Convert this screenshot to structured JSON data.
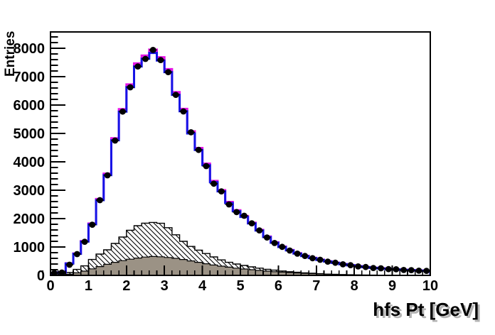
{
  "page": {
    "background": "#ffffff"
  },
  "chart_data": {
    "type": "bar",
    "subtype": "root-histogram-overlay",
    "title": "",
    "xlabel": "hfs Pt [GeV]",
    "ylabel": "Entries",
    "x_range": [
      0,
      10
    ],
    "y_range": [
      0,
      8575
    ],
    "x_major_ticks": [
      0,
      1,
      2,
      3,
      4,
      5,
      6,
      7,
      8,
      9,
      10
    ],
    "y_major_ticks": [
      0,
      1000,
      2000,
      3000,
      4000,
      5000,
      6000,
      7000,
      8000
    ],
    "x_minor_step": 0.2,
    "y_minor_step": 200,
    "grid": false,
    "legend_position": "none",
    "bin_width": 0.2,
    "bin_start": 0,
    "n_bins": 50,
    "series": [
      {
        "name": "background-hatched",
        "style": "step-filled",
        "fill": "hatch",
        "line_color": "#000000",
        "values": [
          20,
          45,
          100,
          210,
          335,
          560,
          750,
          900,
          1125,
          1350,
          1590,
          1750,
          1840,
          1865,
          1835,
          1680,
          1430,
          1200,
          1020,
          890,
          770,
          650,
          545,
          460,
          400,
          350,
          300,
          255,
          215,
          185,
          155,
          130,
          110,
          90,
          75,
          60,
          45,
          35,
          25,
          18,
          12,
          8,
          5,
          4,
          3,
          2,
          2,
          1,
          1,
          1
        ]
      },
      {
        "name": "background-gray",
        "style": "step-filled",
        "fill": "#9b9285",
        "line_color": "#000000",
        "values": [
          5,
          15,
          40,
          90,
          150,
          230,
          310,
          390,
          460,
          520,
          570,
          610,
          645,
          665,
          655,
          630,
          600,
          560,
          510,
          460,
          410,
          365,
          325,
          290,
          255,
          225,
          200,
          175,
          150,
          130,
          115,
          100,
          85,
          72,
          62,
          52,
          44,
          37,
          30,
          25,
          20,
          16,
          13,
          10,
          8,
          6,
          5,
          4,
          3,
          2
        ]
      },
      {
        "name": "mc-black",
        "style": "step-line",
        "line_color": "#000000",
        "line_width": 2,
        "values": [
          85,
          106,
          422,
          764,
          1196,
          1809,
          2663,
          3548,
          4784,
          5799,
          6663,
          7397,
          7668,
          7874,
          7608,
          7196,
          6392,
          5809,
          5025,
          4442,
          3899,
          3296,
          2975,
          2563,
          2271,
          2070,
          1839,
          1588,
          1357,
          1156,
          1005,
          884,
          774,
          683,
          613,
          548,
          492,
          442,
          397,
          357,
          322,
          291,
          266,
          246,
          226,
          211,
          196,
          181,
          171,
          161
        ]
      },
      {
        "name": "mc-magenta",
        "style": "step-line",
        "line_color": "#e614e6",
        "line_width": 3,
        "values": [
          86,
          107,
          426,
          771,
          1208,
          1827,
          2690,
          3583,
          4831,
          5857,
          6729,
          7470,
          7744,
          7953,
          7684,
          7267,
          6455,
          5867,
          5075,
          4486,
          3938,
          3329,
          3004,
          2588,
          2294,
          2091,
          1857,
          1604,
          1370,
          1167,
          1015,
          893,
          781,
          690,
          619,
          553,
          497,
          447,
          401,
          360,
          325,
          294,
          269,
          249,
          228,
          213,
          198,
          183,
          173,
          162
        ]
      },
      {
        "name": "mc-blue",
        "style": "step-line",
        "line_color": "#1414e6",
        "line_width": 3,
        "values": [
          85,
          105,
          420,
          760,
          1190,
          1800,
          2650,
          3530,
          4760,
          5770,
          6630,
          7360,
          7630,
          7835,
          7570,
          7160,
          6360,
          5780,
          5000,
          4420,
          3880,
          3280,
          2960,
          2550,
          2260,
          2060,
          1830,
          1580,
          1350,
          1150,
          1000,
          880,
          770,
          680,
          610,
          545,
          490,
          440,
          395,
          355,
          320,
          290,
          265,
          245,
          225,
          210,
          195,
          180,
          170,
          160
        ]
      },
      {
        "name": "data-points",
        "style": "points",
        "marker": "filled-circle",
        "color": "#000000",
        "values": [
          85,
          100,
          375,
          750,
          1185,
          1785,
          2650,
          3525,
          4750,
          5770,
          6625,
          7360,
          7625,
          7940,
          7585,
          7160,
          6360,
          5775,
          5040,
          4420,
          3850,
          3230,
          2960,
          2500,
          2230,
          2100,
          1835,
          1585,
          1335,
          1140,
          1005,
          875,
          765,
          685,
          605,
          550,
          485,
          445,
          390,
          360,
          315,
          295,
          260,
          250,
          220,
          215,
          190,
          185,
          165,
          160
        ]
      }
    ]
  },
  "style": {
    "frame_color": "#000000",
    "tick_label_color": "#000000",
    "title_shadow_color": "#b3b3b3"
  }
}
